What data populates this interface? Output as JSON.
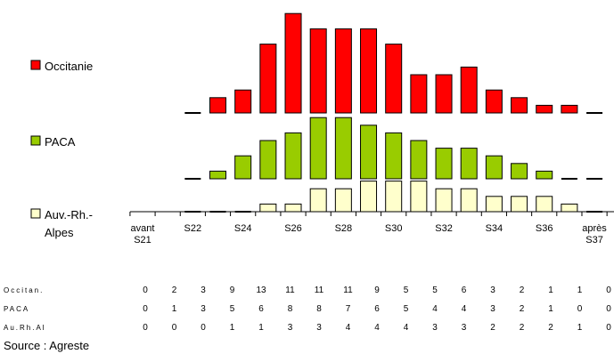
{
  "chart_data": {
    "type": "bar",
    "categories": [
      "avant S21",
      null,
      "S22",
      null,
      "S24",
      null,
      "S26",
      null,
      "S28",
      null,
      "S30",
      null,
      "S32",
      null,
      "S34",
      null,
      "S36",
      null,
      "après S37"
    ],
    "series": [
      {
        "name": "Occitanie",
        "color": "#ff0000",
        "row_label": "Occitan.",
        "values": [
          0,
          0,
          0,
          2,
          3,
          9,
          13,
          11,
          11,
          11,
          9,
          5,
          5,
          6,
          3,
          2,
          1,
          1,
          0
        ]
      },
      {
        "name": "PACA",
        "color": "#99cc00",
        "row_label": "PACA",
        "values": [
          0,
          0,
          0,
          1,
          3,
          5,
          6,
          8,
          8,
          7,
          6,
          5,
          4,
          4,
          3,
          2,
          1,
          0,
          0
        ]
      },
      {
        "name": "Auv.-Rh.-Alpes",
        "color": "#ffffcc",
        "row_label": "Au.Rh.Al",
        "values": [
          0,
          0,
          0,
          0,
          0,
          1,
          1,
          3,
          3,
          4,
          4,
          4,
          3,
          3,
          2,
          2,
          2,
          1,
          0
        ]
      }
    ],
    "source": "Source : Agreste"
  }
}
